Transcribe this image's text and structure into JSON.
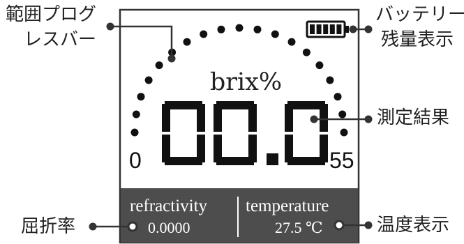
{
  "screen": {
    "unit_label": "brix%",
    "reading": "00.0",
    "scale_min": "0",
    "scale_max": "55",
    "refractivity": {
      "label": "refractivity",
      "value": "0.0000"
    },
    "temperature": {
      "label": "temperature",
      "value": "27.5 ℃"
    },
    "battery_bars": 5
  },
  "callouts": {
    "range_progress": [
      "範囲プログ",
      "レスバー"
    ],
    "battery": [
      "バッテリー",
      "残量表示"
    ],
    "measurement": "測定結果",
    "refraction": "屈折率",
    "temperature_display": "温度表示"
  },
  "colors": {
    "panel": "#4d4d4d",
    "ink": "#111111",
    "line": "#222222"
  },
  "icons": [
    "battery-icon",
    "callout-dot-icon",
    "callout-ring-icon"
  ]
}
